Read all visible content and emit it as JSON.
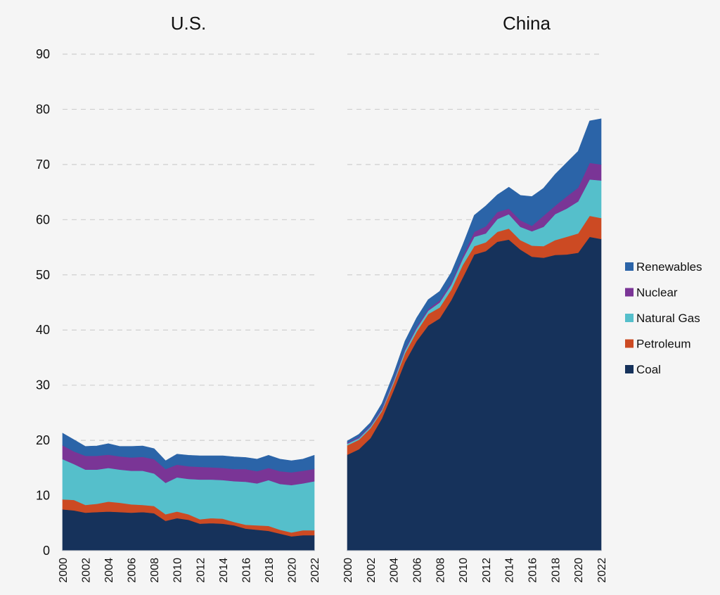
{
  "chart_data": {
    "type": "area",
    "stacked": true,
    "panels": [
      {
        "title": "U.S.",
        "x": [
          2000,
          2001,
          2002,
          2003,
          2004,
          2005,
          2006,
          2007,
          2008,
          2009,
          2010,
          2011,
          2012,
          2013,
          2014,
          2015,
          2016,
          2017,
          2018,
          2019,
          2020,
          2021,
          2022
        ],
        "series": [
          {
            "name": "Coal",
            "values": [
              7.5,
              7.3,
              6.9,
              7.0,
              7.1,
              7.0,
              6.9,
              7.0,
              6.8,
              5.4,
              5.9,
              5.6,
              4.9,
              5.0,
              4.9,
              4.6,
              4.0,
              3.8,
              3.6,
              3.1,
              2.6,
              2.8,
              2.8
            ]
          },
          {
            "name": "Petroleum",
            "values": [
              1.8,
              1.9,
              1.4,
              1.5,
              1.8,
              1.7,
              1.5,
              1.3,
              1.3,
              1.2,
              1.2,
              1.0,
              0.8,
              0.9,
              0.9,
              0.6,
              0.7,
              0.8,
              0.9,
              0.7,
              0.7,
              0.9,
              0.9
            ]
          },
          {
            "name": "Natural Gas",
            "values": [
              7.3,
              6.5,
              6.4,
              6.2,
              6.1,
              6.0,
              6.1,
              6.2,
              5.9,
              5.7,
              6.2,
              6.4,
              7.2,
              7.0,
              7.0,
              7.4,
              7.8,
              7.6,
              8.3,
              8.3,
              8.6,
              8.5,
              8.9
            ]
          },
          {
            "name": "Nuclear",
            "values": [
              2.5,
              2.3,
              2.5,
              2.5,
              2.4,
              2.4,
              2.4,
              2.5,
              2.6,
              2.5,
              2.3,
              2.3,
              2.3,
              2.2,
              2.2,
              2.2,
              2.3,
              2.2,
              2.2,
              2.3,
              2.3,
              2.3,
              2.2
            ]
          },
          {
            "name": "Renewables",
            "values": [
              2.2,
              2.1,
              1.7,
              1.8,
              2.0,
              1.8,
              2.0,
              2.0,
              1.9,
              1.5,
              1.9,
              2.0,
              2.0,
              2.1,
              2.2,
              2.2,
              2.1,
              2.2,
              2.3,
              2.2,
              2.1,
              2.1,
              2.5
            ]
          }
        ]
      },
      {
        "title": "China",
        "x": [
          2000,
          2001,
          2002,
          2003,
          2004,
          2005,
          2006,
          2007,
          2008,
          2009,
          2010,
          2011,
          2012,
          2013,
          2014,
          2015,
          2016,
          2017,
          2018,
          2019,
          2020,
          2021,
          2022
        ],
        "series": [
          {
            "name": "Coal",
            "values": [
              17.4,
              18.4,
              20.4,
              24.0,
              29.0,
              34.2,
              38.0,
              40.8,
              42.1,
              45.4,
              49.5,
              53.7,
              54.3,
              56.0,
              56.4,
              54.6,
              53.3,
              53.1,
              53.6,
              53.7,
              54.0,
              56.9,
              56.5
            ]
          },
          {
            "name": "Petroleum",
            "values": [
              1.7,
              1.7,
              1.8,
              1.3,
              1.3,
              1.6,
              1.7,
              2.1,
              2.0,
              1.9,
              2.3,
              1.5,
              1.6,
              1.8,
              2.0,
              1.7,
              2.0,
              2.1,
              2.7,
              3.2,
              3.5,
              3.8,
              3.8
            ]
          },
          {
            "name": "Natural Gas",
            "values": [
              0.3,
              0.3,
              0.3,
              0.3,
              0.4,
              0.5,
              0.6,
              0.6,
              0.9,
              0.9,
              1.1,
              1.7,
              1.6,
              2.3,
              2.6,
              2.4,
              2.6,
              3.5,
              4.7,
              5.1,
              5.8,
              6.6,
              6.8
            ]
          },
          {
            "name": "Nuclear",
            "values": [
              0.2,
              0.2,
              0.2,
              0.3,
              0.3,
              0.3,
              0.3,
              0.3,
              0.4,
              0.4,
              0.5,
              0.9,
              1.3,
              1.3,
              1.0,
              1.2,
              1.0,
              2.0,
              1.5,
              2.2,
              2.5,
              3.0,
              2.9
            ]
          },
          {
            "name": "Renewables",
            "values": [
              0.3,
              0.5,
              0.5,
              0.8,
              1.0,
              1.4,
              1.6,
              1.7,
              1.6,
              1.8,
              2.0,
              3.0,
              3.7,
              3.1,
              3.9,
              4.5,
              5.3,
              5.0,
              5.7,
              6.1,
              6.6,
              7.6,
              8.3
            ]
          }
        ]
      }
    ],
    "ylim": [
      0,
      90
    ],
    "yticks": [
      0,
      10,
      20,
      30,
      40,
      50,
      60,
      70,
      80,
      90
    ],
    "xticks": [
      2000,
      2002,
      2004,
      2006,
      2008,
      2010,
      2012,
      2014,
      2016,
      2018,
      2020,
      2022
    ],
    "grid": true,
    "xlabel": "",
    "ylabel": "",
    "legend": {
      "placement": "right",
      "entries": [
        {
          "name": "Renewables",
          "color": "#2b64a8"
        },
        {
          "name": "Nuclear",
          "color": "#7a3596"
        },
        {
          "name": "Natural Gas",
          "color": "#55bfcb"
        },
        {
          "name": "Petroleum",
          "color": "#cc4a23"
        },
        {
          "name": "Coal",
          "color": "#16325b"
        }
      ]
    },
    "colors": {
      "Coal": "#16325b",
      "Petroleum": "#cc4a23",
      "Natural Gas": "#55bfcb",
      "Nuclear": "#7a3596",
      "Renewables": "#2b64a8"
    }
  }
}
